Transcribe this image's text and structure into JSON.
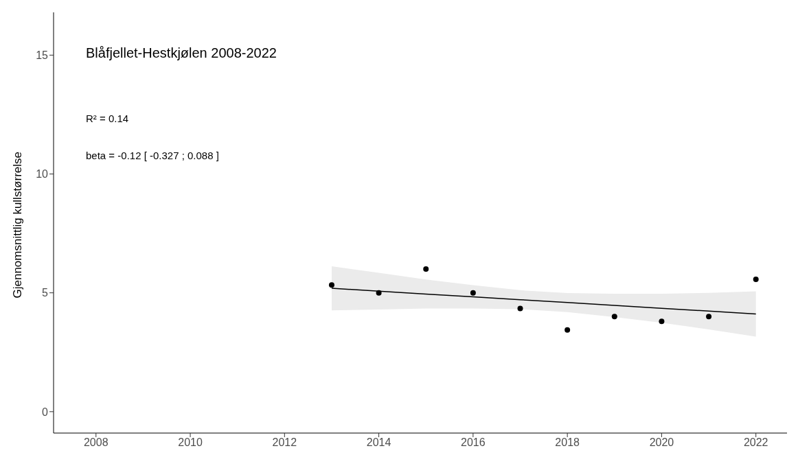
{
  "chart_data": {
    "type": "scatter",
    "title": "Blåfjellet-Hestkjølen 2008-2022",
    "ylabel": "Gjennomsnittlig kullstørrelse",
    "annotations": [
      "R² = 0.14",
      "beta = -0.12 [ -0.327 ; 0.088 ]"
    ],
    "series": [
      {
        "color": "#000000",
        "x": [
          2013,
          2014,
          2015,
          2016,
          2017,
          2018,
          2019,
          2020,
          2021,
          2022
        ],
        "values": [
          5.33,
          5.0,
          6.0,
          5.0,
          4.34,
          3.44,
          4.0,
          3.8,
          4.0,
          5.57
        ]
      },
      {
        "type": "line",
        "marker": "none",
        "color": "#000000",
        "x": [
          2013,
          2014,
          2015,
          2016,
          2017,
          2018,
          2019,
          2020,
          2021,
          2022
        ],
        "values": [
          5.19,
          5.07,
          4.95,
          4.83,
          4.71,
          4.59,
          4.47,
          4.35,
          4.23,
          4.11
        ],
        "lower": [
          4.26,
          4.3,
          4.34,
          4.34,
          4.31,
          4.19,
          3.98,
          3.74,
          3.46,
          3.16
        ],
        "upper": [
          6.12,
          5.84,
          5.56,
          5.32,
          5.11,
          4.99,
          4.96,
          4.96,
          5.0,
          5.06
        ]
      }
    ],
    "xlim": [
      2007.1,
      2022.66
    ],
    "xticks": [
      2008,
      2010,
      2012,
      2014,
      2016,
      2018,
      2020,
      2022
    ],
    "ylim": [
      -0.9,
      16.8
    ],
    "yticks": [
      0,
      5,
      10,
      15
    ],
    "grid": false,
    "legend": false,
    "marker": "circle"
  }
}
